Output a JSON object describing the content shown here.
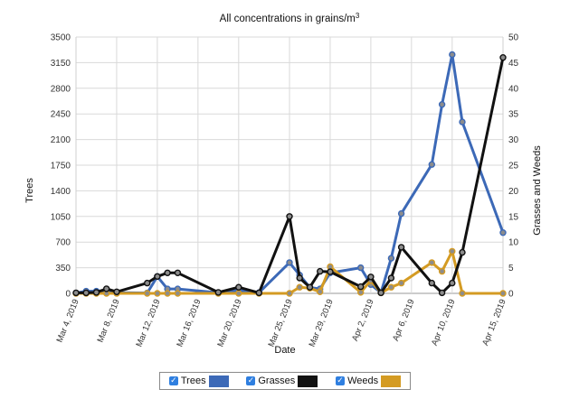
{
  "chart_data": {
    "type": "line",
    "title": "All concentrations in grains/m",
    "title_superscript": "3",
    "xlabel": "Date",
    "ylabel_left": "Trees",
    "ylabel_right": "Grasses and Weeds",
    "ylim_left": [
      0,
      3500
    ],
    "ylim_right": [
      0,
      50
    ],
    "yticks_left": [
      "0",
      "350",
      "700",
      "1050",
      "1400",
      "1750",
      "2100",
      "2450",
      "2800",
      "3150",
      "3500"
    ],
    "yticks_right": [
      "0",
      "5",
      "10",
      "15",
      "20",
      "25",
      "30",
      "35",
      "40",
      "45",
      "50"
    ],
    "x_ticks": [
      "Mar 4, 2019",
      "Mar 8, 2019",
      "Mar 12, 2019",
      "Mar 16, 2019",
      "Mar 20, 2019",
      "Mar 25, 2019",
      "Mar 29, 2019",
      "Apr 2, 2019",
      "Apr 6, 2019",
      "Apr 10, 2019",
      "Apr 15, 2019"
    ],
    "grid": "vertical and horizontal",
    "legend_position": "bottom",
    "series": [
      {
        "name": "Trees",
        "axis": "left",
        "color": "#3c69b7",
        "points": [
          [
            "2019-03-04",
            5
          ],
          [
            "2019-03-05",
            30
          ],
          [
            "2019-03-06",
            30
          ],
          [
            "2019-03-07",
            40
          ],
          [
            "2019-03-08",
            10
          ],
          [
            "2019-03-11",
            5
          ],
          [
            "2019-03-12",
            230
          ],
          [
            "2019-03-13",
            60
          ],
          [
            "2019-03-14",
            60
          ],
          [
            "2019-03-18",
            10
          ],
          [
            "2019-03-20",
            40
          ],
          [
            "2019-03-22",
            10
          ],
          [
            "2019-03-25",
            420
          ],
          [
            "2019-03-26",
            250
          ],
          [
            "2019-03-27",
            80
          ],
          [
            "2019-03-28",
            60
          ],
          [
            "2019-03-29",
            280
          ],
          [
            "2019-04-01",
            350
          ],
          [
            "2019-04-02",
            120
          ],
          [
            "2019-04-03",
            10
          ],
          [
            "2019-04-04",
            480
          ],
          [
            "2019-04-05",
            1090
          ],
          [
            "2019-04-08",
            1760
          ],
          [
            "2019-04-09",
            2580
          ],
          [
            "2019-04-10",
            3260
          ],
          [
            "2019-04-11",
            2340
          ],
          [
            "2019-04-15",
            830
          ]
        ]
      },
      {
        "name": "Grasses",
        "axis": "right",
        "color": "#111111",
        "points": [
          [
            "2019-03-04",
            0.1
          ],
          [
            "2019-03-05",
            0.1
          ],
          [
            "2019-03-06",
            0.2
          ],
          [
            "2019-03-07",
            0.9
          ],
          [
            "2019-03-08",
            0.3
          ],
          [
            "2019-03-11",
            2
          ],
          [
            "2019-03-12",
            3.3
          ],
          [
            "2019-03-13",
            4
          ],
          [
            "2019-03-14",
            4
          ],
          [
            "2019-03-18",
            0.2
          ],
          [
            "2019-03-20",
            1.2
          ],
          [
            "2019-03-22",
            0.1
          ],
          [
            "2019-03-25",
            15
          ],
          [
            "2019-03-26",
            3
          ],
          [
            "2019-03-27",
            1.2
          ],
          [
            "2019-03-28",
            4.3
          ],
          [
            "2019-03-29",
            4.2
          ],
          [
            "2019-04-01",
            1.3
          ],
          [
            "2019-04-02",
            3.2
          ],
          [
            "2019-04-03",
            0.1
          ],
          [
            "2019-04-04",
            3
          ],
          [
            "2019-04-05",
            9
          ],
          [
            "2019-04-08",
            2
          ],
          [
            "2019-04-09",
            0.1
          ],
          [
            "2019-04-10",
            2
          ],
          [
            "2019-04-11",
            8
          ],
          [
            "2019-04-15",
            46
          ]
        ]
      },
      {
        "name": "Weeds",
        "axis": "right",
        "color": "#d49b23",
        "points": [
          [
            "2019-03-04",
            0
          ],
          [
            "2019-03-05",
            0
          ],
          [
            "2019-03-06",
            0
          ],
          [
            "2019-03-07",
            0
          ],
          [
            "2019-03-08",
            0
          ],
          [
            "2019-03-11",
            0
          ],
          [
            "2019-03-12",
            0
          ],
          [
            "2019-03-13",
            0
          ],
          [
            "2019-03-14",
            0
          ],
          [
            "2019-03-18",
            0
          ],
          [
            "2019-03-20",
            0
          ],
          [
            "2019-03-22",
            0
          ],
          [
            "2019-03-25",
            0
          ],
          [
            "2019-03-26",
            1.2
          ],
          [
            "2019-03-27",
            1
          ],
          [
            "2019-03-28",
            0.3
          ],
          [
            "2019-03-29",
            5.2
          ],
          [
            "2019-04-01",
            0.2
          ],
          [
            "2019-04-02",
            2.5
          ],
          [
            "2019-04-03",
            0.1
          ],
          [
            "2019-04-04",
            1.2
          ],
          [
            "2019-04-05",
            2
          ],
          [
            "2019-04-08",
            6
          ],
          [
            "2019-04-09",
            4.3
          ],
          [
            "2019-04-10",
            8.2
          ],
          [
            "2019-04-11",
            0
          ],
          [
            "2019-04-15",
            0
          ]
        ]
      }
    ]
  },
  "legend": {
    "items": [
      {
        "label": "Trees",
        "check": "✓",
        "color": "#3c69b7"
      },
      {
        "label": "Grasses",
        "check": "✓",
        "color": "#111111"
      },
      {
        "label": "Weeds",
        "check": "✓",
        "color": "#d49b23"
      }
    ]
  }
}
